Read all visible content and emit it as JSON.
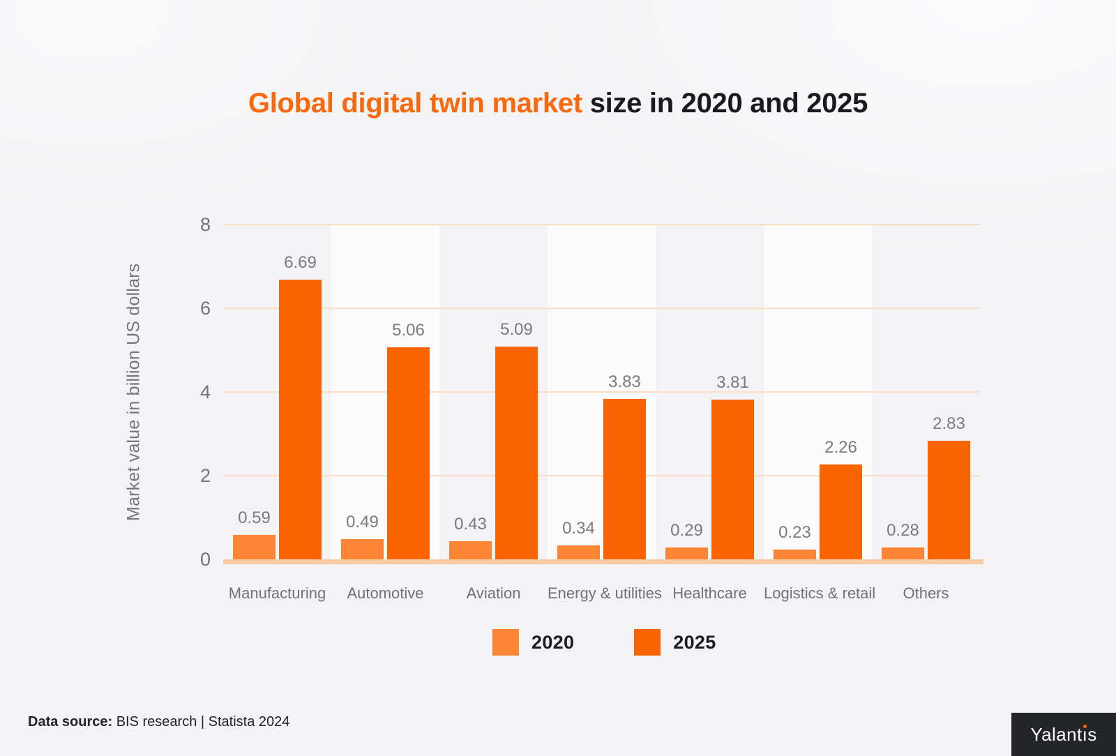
{
  "title": {
    "highlight": "Global digital twin market",
    "rest": " size in 2020 and 2025"
  },
  "chart_data": {
    "type": "bar",
    "categories": [
      "Manufacturing",
      "Automotive",
      "Aviation",
      "Energy & utilities",
      "Healthcare",
      "Logistics & retail",
      "Others"
    ],
    "series": [
      {
        "name": "2020",
        "color": "#FC8435",
        "values": [
          0.59,
          0.49,
          0.43,
          0.34,
          0.29,
          0.23,
          0.28
        ]
      },
      {
        "name": "2025",
        "color": "#FA6400",
        "values": [
          6.69,
          5.06,
          5.09,
          3.83,
          3.81,
          2.26,
          2.83
        ]
      }
    ],
    "title": "Global digital twin market size in 2020 and 2025",
    "xlabel": "",
    "ylabel": "Market value in billion US dollars",
    "yticks": [
      0,
      2,
      4,
      6,
      8
    ],
    "ylim": [
      0,
      8
    ],
    "grid": true,
    "gridline_color": "#FBDDC3",
    "baseline_color": "#F9CBA5",
    "band_color": "#FBFBFC",
    "value_label_color": "#797B81",
    "legend_position": "bottom"
  },
  "legend": {
    "items": [
      {
        "label": "2020",
        "color": "#FC8435"
      },
      {
        "label": "2025",
        "color": "#FA6400"
      }
    ]
  },
  "footer": {
    "source_label": "Data source:",
    "source_text": " BIS research | Statista 2024"
  },
  "logo": {
    "text": "Yalantis",
    "accent": "#F8690E"
  },
  "colors": {
    "title_highlight": "#F8690E",
    "title_rest": "#191A1E",
    "axis_text": "#72747B",
    "background": "#F3F3F5"
  }
}
